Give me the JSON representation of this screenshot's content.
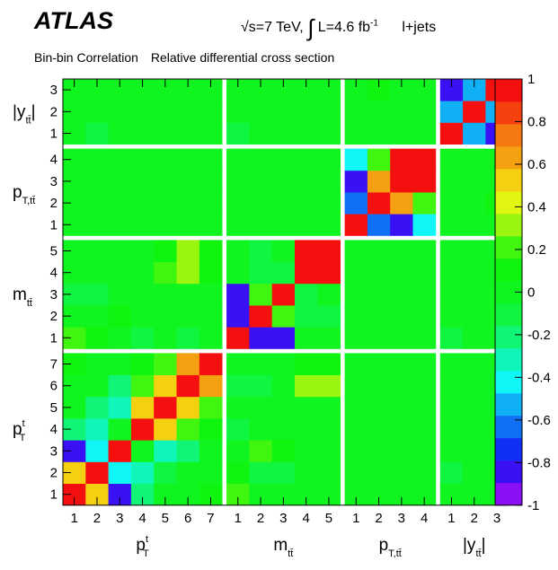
{
  "header": {
    "experiment": "ATLAS",
    "sqrt_s_label": "√s=7 TeV,",
    "lumi_label": "L=4.6 fb",
    "lumi_exponent": "-1",
    "channel": "l+jets",
    "subtitle_left": "Bin-bin Correlation",
    "subtitle_right": "Relative differential cross section"
  },
  "chart_data": {
    "type": "heatmap",
    "title": "Bin-bin Correlation",
    "subtitle": "Relative differential cross section",
    "zlim": [
      -1,
      1
    ],
    "colorbar_ticks": [
      "1",
      "0.8",
      "0.6",
      "0.4",
      "0.2",
      "0",
      "-0.2",
      "-0.4",
      "-0.6",
      "-0.8",
      "-1"
    ],
    "groups": [
      {
        "base": "p",
        "sup": "t",
        "sub": "T",
        "bins": [
          "1",
          "2",
          "3",
          "4",
          "5",
          "6",
          "7"
        ]
      },
      {
        "base": "m",
        "sup": "",
        "sub": "tt̄",
        "bins": [
          "1",
          "2",
          "3",
          "4",
          "5"
        ]
      },
      {
        "base": "p",
        "sup": "",
        "sub": "T,tt̄",
        "bins": [
          "1",
          "2",
          "3",
          "4"
        ]
      },
      {
        "base": "|y",
        "sup": "",
        "sub": "tt̄",
        "tail": "|",
        "bins": [
          "1",
          "2",
          "3"
        ]
      }
    ],
    "matrix": [
      [
        1.0,
        0.5,
        -0.8,
        -0.2,
        0.0,
        0.05,
        0.1,
        0.2,
        0.0,
        0.0,
        0.0,
        0.0,
        0.0,
        0.0,
        0.0,
        0.0,
        0.0,
        0.0,
        0.0
      ],
      [
        0.5,
        1.0,
        -0.4,
        -0.35,
        -0.1,
        0.0,
        0.05,
        0.15,
        -0.1,
        -0.1,
        0.0,
        0.0,
        0.0,
        0.0,
        0.0,
        0.0,
        -0.1,
        0.0,
        0.0
      ],
      [
        -0.8,
        -0.4,
        1.0,
        0.05,
        -0.3,
        -0.2,
        -0.05,
        0.0,
        0.2,
        0.1,
        0.0,
        0.0,
        0.0,
        0.0,
        0.0,
        0.0,
        0.0,
        0.0,
        0.0
      ],
      [
        -0.2,
        -0.35,
        0.05,
        1.0,
        0.5,
        0.2,
        0.1,
        -0.1,
        0.0,
        0.0,
        0.0,
        0.0,
        0.0,
        0.0,
        0.0,
        0.0,
        0.0,
        0.0,
        0.0
      ],
      [
        0.0,
        -0.25,
        -0.3,
        0.5,
        1.0,
        0.5,
        0.25,
        -0.05,
        0.0,
        0.05,
        0.0,
        0.0,
        0.0,
        0.0,
        0.0,
        0.0,
        0.0,
        0.0,
        0.0
      ],
      [
        0.05,
        -0.05,
        -0.2,
        0.2,
        0.5,
        1.0,
        0.6,
        -0.1,
        -0.1,
        0.0,
        0.3,
        0.3,
        0.0,
        0.0,
        0.0,
        0.0,
        0.0,
        0.0,
        0.0
      ],
      [
        0.1,
        0.05,
        0.0,
        0.1,
        0.25,
        0.6,
        1.0,
        0.0,
        0.0,
        0.0,
        0.15,
        0.15,
        0.0,
        0.0,
        0.0,
        0.0,
        0.0,
        0.0,
        0.0
      ],
      [
        0.2,
        0.15,
        0.0,
        -0.1,
        -0.05,
        -0.1,
        0.0,
        1.0,
        -0.8,
        -0.8,
        0.0,
        0.0,
        0.0,
        0.0,
        0.0,
        0.0,
        -0.1,
        0.0,
        0.0
      ],
      [
        0.0,
        0.0,
        0.15,
        0.0,
        0.0,
        -0.05,
        0.0,
        -0.8,
        1.0,
        0.2,
        -0.15,
        -0.1,
        0.0,
        0.0,
        0.0,
        0.0,
        0.0,
        0.0,
        0.0
      ],
      [
        -0.1,
        -0.1,
        0.0,
        0.0,
        0.0,
        0.0,
        0.0,
        -0.8,
        0.2,
        1.0,
        -0.1,
        0.0,
        0.0,
        0.0,
        0.0,
        0.0,
        0.0,
        0.0,
        0.0
      ],
      [
        0.0,
        0.0,
        0.0,
        0.05,
        0.2,
        0.3,
        0.15,
        0.0,
        -0.15,
        -0.1,
        1.0,
        1.0,
        0.0,
        0.0,
        0.0,
        0.0,
        0.0,
        0.0,
        0.0
      ],
      [
        0.0,
        0.0,
        0.0,
        0.05,
        0.15,
        0.3,
        0.15,
        0.0,
        -0.1,
        0.0,
        1.0,
        1.0,
        0.0,
        0.0,
        0.0,
        0.0,
        0.0,
        0.0,
        0.0
      ],
      [
        0.0,
        0.0,
        0.0,
        0.0,
        0.0,
        0.0,
        0.0,
        0.0,
        0.0,
        0.0,
        0.0,
        0.0,
        1.0,
        -0.6,
        -0.8,
        -0.4,
        0.0,
        0.0,
        0.0
      ],
      [
        0.0,
        0.0,
        0.0,
        0.0,
        0.0,
        0.0,
        0.0,
        0.0,
        0.0,
        0.0,
        0.0,
        0.0,
        -0.6,
        1.0,
        0.6,
        0.2,
        0.0,
        0.0,
        0.1
      ],
      [
        0.0,
        0.0,
        0.0,
        0.0,
        0.0,
        0.0,
        0.0,
        0.0,
        0.0,
        0.0,
        0.0,
        0.0,
        -0.8,
        0.6,
        1.0,
        1.0,
        0.0,
        0.0,
        0.0
      ],
      [
        0.0,
        0.0,
        0.0,
        0.0,
        0.0,
        0.0,
        0.0,
        0.0,
        0.0,
        0.0,
        0.0,
        0.0,
        -0.4,
        0.2,
        1.0,
        1.0,
        0.0,
        0.0,
        0.0
      ],
      [
        0.0,
        -0.1,
        0.0,
        0.0,
        0.0,
        0.0,
        0.0,
        -0.1,
        0.0,
        0.0,
        0.0,
        0.0,
        0.0,
        0.0,
        0.0,
        0.0,
        1.0,
        -0.5,
        -0.8
      ],
      [
        0.0,
        0.0,
        0.0,
        0.0,
        0.0,
        0.0,
        0.0,
        0.0,
        0.0,
        0.0,
        0.0,
        0.0,
        0.0,
        0.0,
        0.0,
        0.0,
        -0.5,
        1.0,
        -0.5
      ],
      [
        0.0,
        0.0,
        0.0,
        0.0,
        0.0,
        0.0,
        0.0,
        0.0,
        0.0,
        0.0,
        0.0,
        0.0,
        0.0,
        0.1,
        0.0,
        0.0,
        -0.8,
        -0.5,
        1.0
      ]
    ],
    "palette": [
      "#8a10f5",
      "#3a10f5",
      "#1030f5",
      "#1070f5",
      "#10b0f5",
      "#10f5f5",
      "#10f5b8",
      "#10f575",
      "#10f540",
      "#10f520",
      "#10f510",
      "#40f510",
      "#9af510",
      "#e0f510",
      "#f5d010",
      "#f5a010",
      "#f57810",
      "#f54010",
      "#f51010"
    ],
    "grid": false,
    "colorbar": "right"
  }
}
